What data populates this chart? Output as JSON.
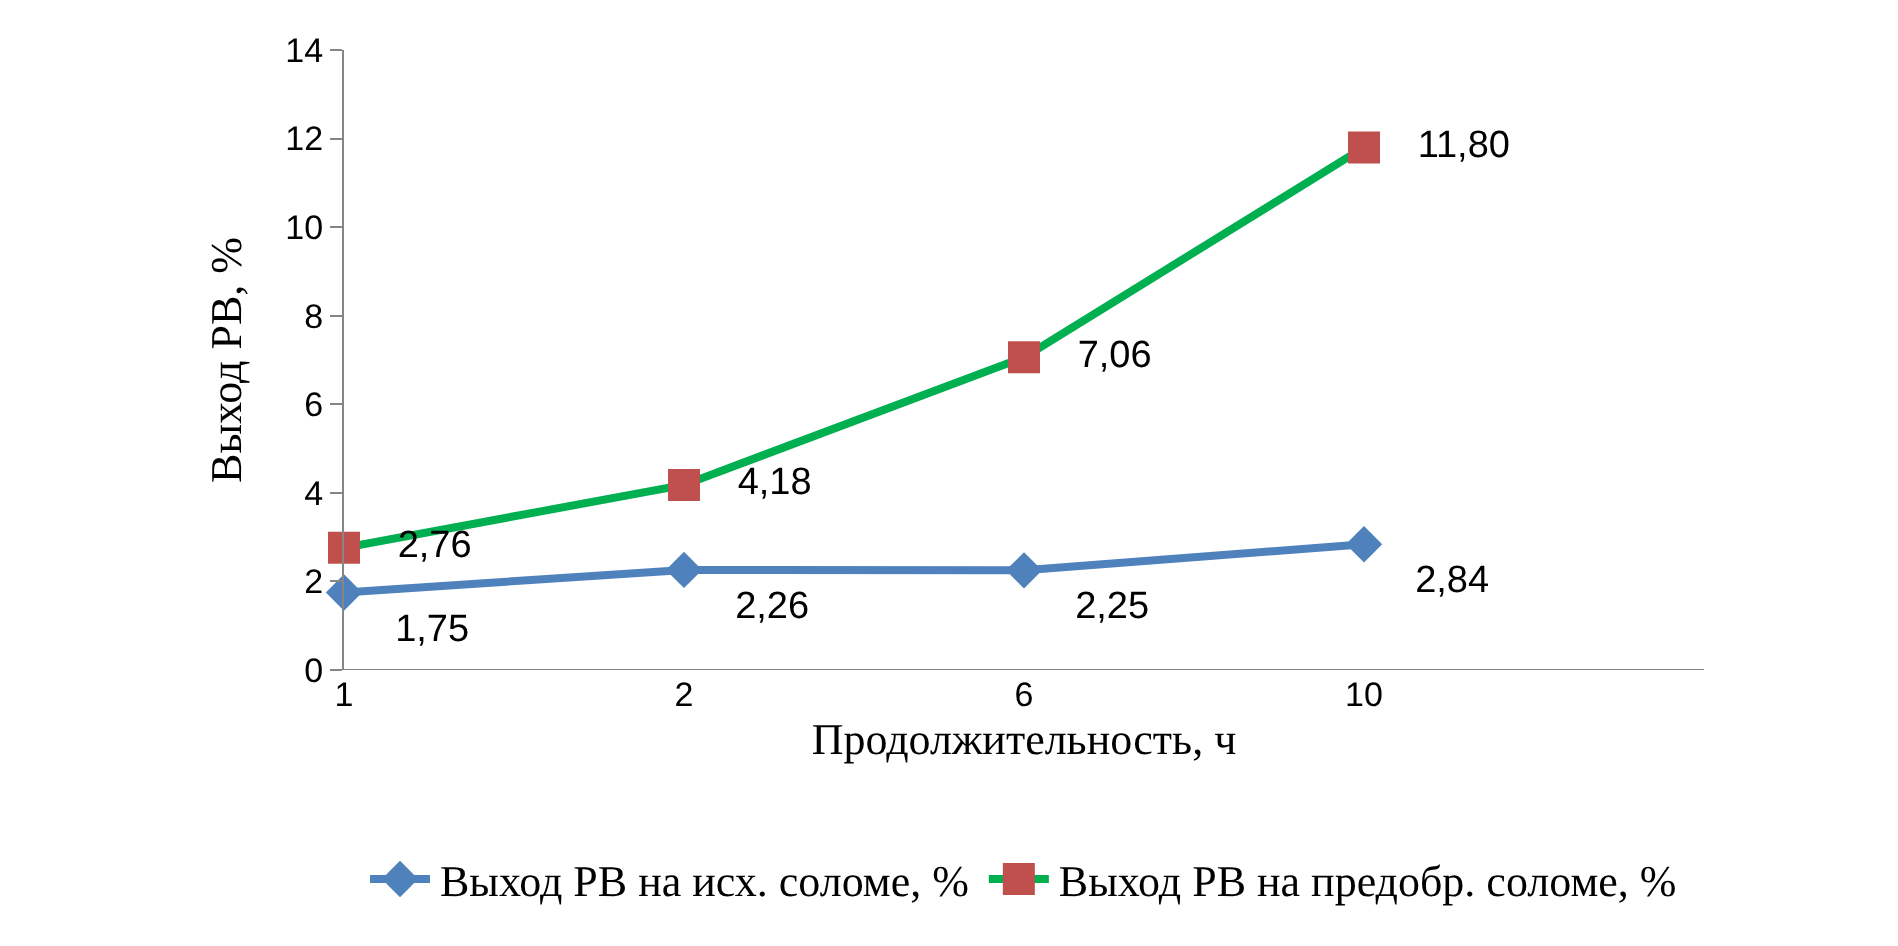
{
  "chart_data": {
    "type": "line",
    "xlabel": "Продолжительность, ч",
    "ylabel": "Выход РВ, %",
    "categories": [
      "1",
      "2",
      "6",
      "10"
    ],
    "series": [
      {
        "name": "Выход РВ на исх. соломе, %",
        "color": "#4f81bd",
        "marker": "diamond",
        "values": [
          1.75,
          2.26,
          2.25,
          2.84
        ],
        "value_labels": [
          "1,75",
          "2,26",
          "2,25",
          "2,84"
        ]
      },
      {
        "name": "Выход РВ на предобр. соломе, %",
        "color": "#00b050",
        "colors": [
          "#c0504d",
          "#c0504d",
          "#c0504d",
          "#c0504d"
        ],
        "marker": "square",
        "values": [
          2.76,
          4.18,
          7.06,
          11.8
        ],
        "value_labels": [
          "2,76",
          "4,18",
          "7,06",
          "11,80"
        ]
      }
    ],
    "ylim": [
      0,
      14
    ],
    "yticks": [
      0,
      2,
      4,
      6,
      8,
      10,
      12,
      14
    ],
    "legend": "bottom"
  }
}
